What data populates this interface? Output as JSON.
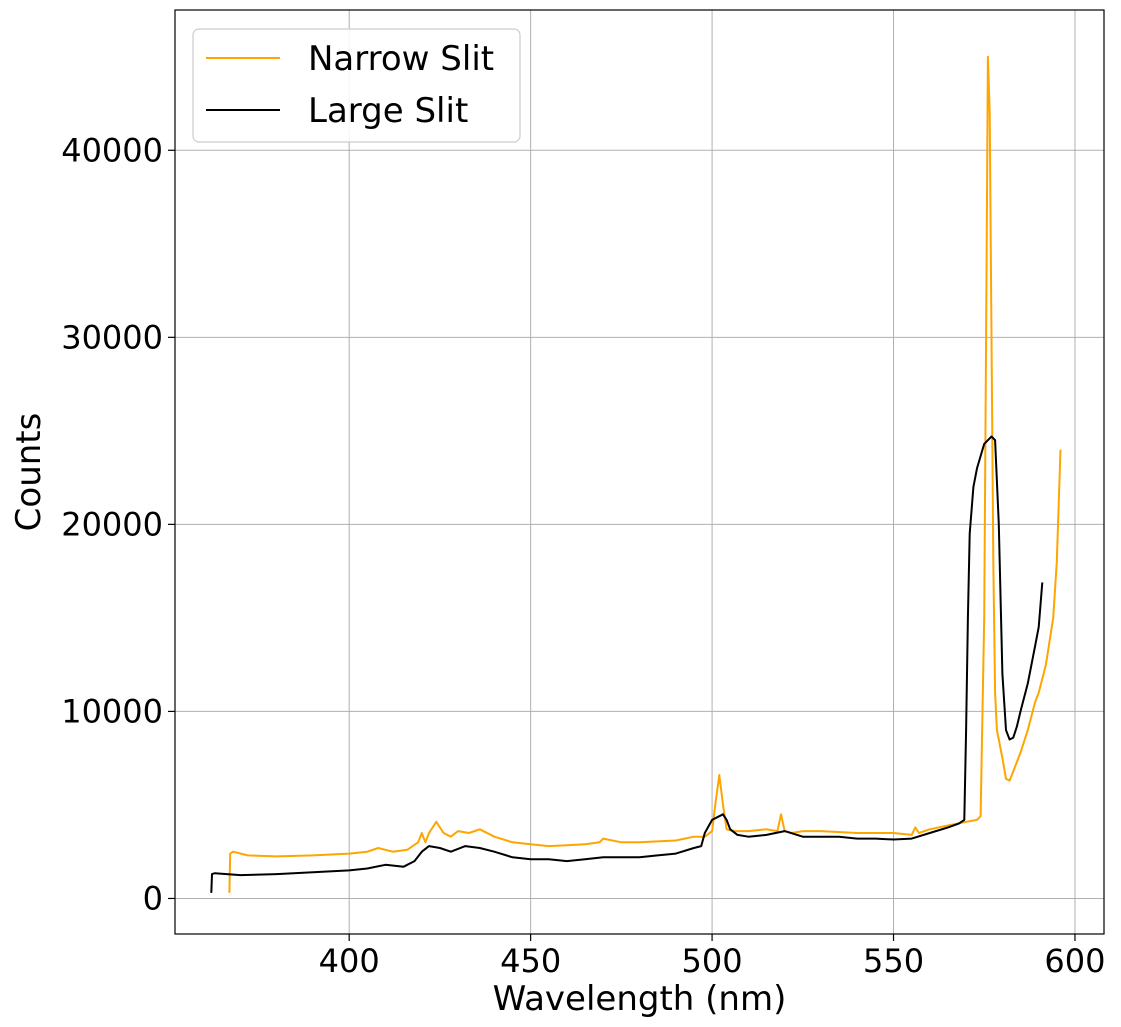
{
  "chart_data": {
    "type": "line",
    "title": "",
    "xlabel": "Wavelength (nm)",
    "ylabel": "Counts",
    "xlim": [
      352,
      608
    ],
    "ylim": [
      -1900,
      47500
    ],
    "xticks": [
      400,
      450,
      500,
      550,
      600
    ],
    "yticks": [
      0,
      10000,
      20000,
      30000,
      40000
    ],
    "grid": true,
    "legend_position": "upper-left",
    "series": [
      {
        "name": "Narrow Slit",
        "color": "#FFA500",
        "x": [
          367,
          367.2,
          368,
          372,
          380,
          390,
          400,
          405,
          408,
          412,
          416,
          419,
          420,
          421,
          422,
          424,
          426,
          428,
          430,
          433,
          436,
          440,
          445,
          450,
          455,
          460,
          465,
          469,
          470,
          475,
          480,
          490,
          495,
          498,
          500,
          501,
          502,
          503,
          504,
          506,
          510,
          515,
          518,
          519,
          520,
          522,
          525,
          530,
          540,
          550,
          555,
          556,
          557,
          560,
          565,
          570,
          573,
          574,
          575,
          575.5,
          576,
          576.5,
          577,
          577.5,
          578,
          578.5,
          579,
          580,
          581,
          582,
          583,
          585,
          587,
          589,
          590,
          592,
          594,
          595,
          596
        ],
        "y": [
          300,
          2400,
          2500,
          2300,
          2250,
          2300,
          2400,
          2500,
          2700,
          2500,
          2600,
          3000,
          3500,
          3000,
          3500,
          4100,
          3500,
          3300,
          3600,
          3500,
          3700,
          3300,
          3000,
          2900,
          2800,
          2850,
          2900,
          3000,
          3200,
          3000,
          3000,
          3100,
          3300,
          3300,
          3600,
          5200,
          6600,
          5000,
          3700,
          3600,
          3600,
          3700,
          3600,
          4500,
          3600,
          3500,
          3600,
          3600,
          3500,
          3500,
          3400,
          3800,
          3500,
          3700,
          3900,
          4100,
          4200,
          4400,
          15000,
          30000,
          45000,
          42000,
          30000,
          18000,
          11000,
          9000,
          8500,
          7500,
          6400,
          6300,
          6800,
          7800,
          9000,
          10500,
          11000,
          12500,
          15000,
          18000,
          24000
        ]
      },
      {
        "name": "Large Slit",
        "color": "#000000",
        "x": [
          362,
          362.2,
          363,
          370,
          380,
          390,
          400,
          405,
          410,
          415,
          418,
          420,
          422,
          425,
          428,
          432,
          436,
          440,
          445,
          450,
          455,
          460,
          465,
          470,
          475,
          480,
          485,
          490,
          495,
          497,
          498,
          500,
          502,
          503,
          504,
          505,
          507,
          510,
          515,
          520,
          525,
          530,
          535,
          540,
          545,
          550,
          555,
          560,
          565,
          568,
          569.5,
          570,
          570.5,
          571,
          572,
          573,
          575,
          576,
          577,
          578,
          579,
          580,
          581,
          582,
          583,
          584,
          585,
          587,
          589,
          590,
          591
        ],
        "y": [
          300,
          1300,
          1350,
          1250,
          1300,
          1400,
          1500,
          1600,
          1800,
          1700,
          2000,
          2500,
          2800,
          2700,
          2500,
          2800,
          2700,
          2500,
          2200,
          2100,
          2100,
          2000,
          2100,
          2200,
          2200,
          2200,
          2300,
          2400,
          2700,
          2800,
          3500,
          4200,
          4400,
          4500,
          4200,
          3700,
          3400,
          3300,
          3400,
          3600,
          3300,
          3300,
          3300,
          3200,
          3200,
          3150,
          3200,
          3500,
          3800,
          4000,
          4200,
          9000,
          15000,
          19500,
          22000,
          23000,
          24300,
          24500,
          24700,
          24500,
          20000,
          12000,
          9000,
          8500,
          8600,
          9200,
          10000,
          11500,
          13500,
          14500,
          16900
        ]
      }
    ]
  }
}
